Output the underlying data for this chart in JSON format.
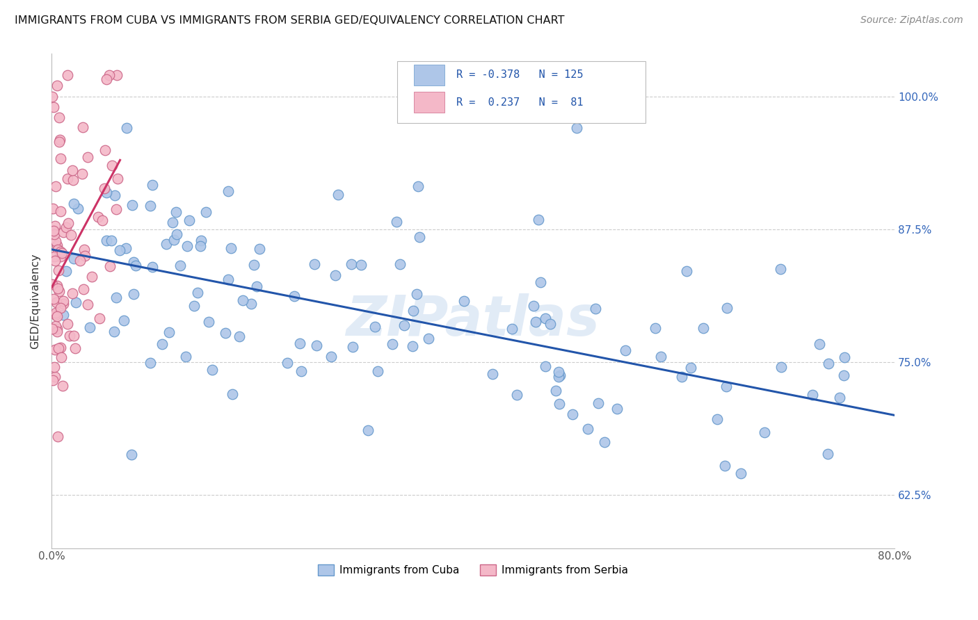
{
  "title": "IMMIGRANTS FROM CUBA VS IMMIGRANTS FROM SERBIA GED/EQUIVALENCY CORRELATION CHART",
  "source": "Source: ZipAtlas.com",
  "ylabel": "GED/Equivalency",
  "ytick_labels": [
    "100.0%",
    "87.5%",
    "75.0%",
    "62.5%"
  ],
  "ytick_values": [
    1.0,
    0.875,
    0.75,
    0.625
  ],
  "legend_labels": [
    "Immigrants from Cuba",
    "Immigrants from Serbia"
  ],
  "cuba_color": "#aec6e8",
  "cuba_edge": "#6699cc",
  "serbia_color": "#f4b8c8",
  "serbia_edge": "#cc6688",
  "trendline_cuba_color": "#2255aa",
  "trendline_serbia_color": "#cc3366",
  "cuba_trend_x0": 0.0,
  "cuba_trend_x1": 0.8,
  "cuba_trend_y0": 0.856,
  "cuba_trend_y1": 0.7,
  "serbia_trend_x0": 0.0,
  "serbia_trend_x1": 0.065,
  "serbia_trend_y0": 0.82,
  "serbia_trend_y1": 0.94,
  "xlim": [
    0.0,
    0.8
  ],
  "ylim": [
    0.575,
    1.04
  ],
  "watermark": "ZIPatlas",
  "background_color": "#ffffff",
  "grid_color": "#cccccc"
}
